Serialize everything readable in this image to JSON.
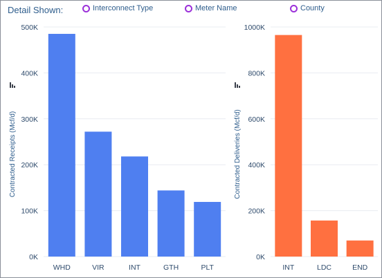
{
  "header": {
    "title": "Detail Shown:",
    "options": [
      {
        "label": "Interconnect Type"
      },
      {
        "label": "Meter Name"
      },
      {
        "label": "County"
      }
    ]
  },
  "icons": {
    "modebar": "bar-chart-icon"
  },
  "colors": {
    "receipts_bar": "#4f7ff0",
    "deliveries_bar": "#ff7040",
    "radio_ring": "#9b30d9",
    "text": "#2e5d8c"
  },
  "chart_data": [
    {
      "type": "bar",
      "categories": [
        "WHD",
        "VIR",
        "INT",
        "GTH",
        "PLT"
      ],
      "values": [
        485000,
        272000,
        218000,
        144000,
        119000
      ],
      "xlabel": "",
      "ylabel": "Contracted Receipts (Mcf/d)",
      "ylim": [
        0,
        500000
      ],
      "yticks": [
        0,
        100000,
        200000,
        300000,
        400000,
        500000
      ],
      "ytick_labels": [
        "0K",
        "100K",
        "200K",
        "300K",
        "400K",
        "500K"
      ],
      "grid": true
    },
    {
      "type": "bar",
      "categories": [
        "INT",
        "LDC",
        "END"
      ],
      "values": [
        965000,
        157000,
        70000
      ],
      "xlabel": "",
      "ylabel": "Contracted Deliveries (Mcf/d)",
      "ylim": [
        0,
        1000000
      ],
      "yticks": [
        0,
        200000,
        400000,
        600000,
        800000,
        1000000
      ],
      "ytick_labels": [
        "0K",
        "200K",
        "400K",
        "600K",
        "800K",
        "1000K"
      ],
      "grid": true
    }
  ]
}
